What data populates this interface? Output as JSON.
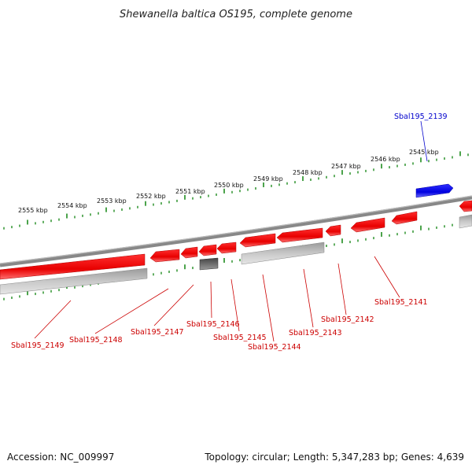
{
  "title": "Shewanella baltica OS195, complete genome",
  "footer": {
    "accession": "Accession: NC_009997",
    "topology": "Topology: circular; Length: 5,347,283 bp; Genes: 4,639"
  },
  "colors": {
    "forward_gene": "#ff1a1a",
    "reverse_gene": "#ff1a1a",
    "highlight_gene": "#1a1aff",
    "other_feature": "#c0c0c0",
    "backbone": "#8c8c8c",
    "tick": "#1e8c1e",
    "label_red": "#cc0000",
    "label_blue": "#0000cc"
  },
  "ticks_top": [
    "2555 kbp",
    "2554 kbp",
    "2553 kbp",
    "2552 kbp",
    "2551 kbp",
    "2550 kbp",
    "2549 kbp",
    "2548 kbp",
    "2547 kbp",
    "2546 kbp",
    "2545 kbp"
  ],
  "gene_labels": [
    {
      "id": "Sbal195_2139",
      "color": "blue"
    },
    {
      "id": "Sbal195_2141",
      "color": "red"
    },
    {
      "id": "Sbal195_2142",
      "color": "red"
    },
    {
      "id": "Sbal195_2143",
      "color": "red"
    },
    {
      "id": "Sbal195_2144",
      "color": "red"
    },
    {
      "id": "Sbal195_2145",
      "color": "red"
    },
    {
      "id": "Sbal195_2146",
      "color": "red"
    },
    {
      "id": "Sbal195_2147",
      "color": "red"
    },
    {
      "id": "Sbal195_2148",
      "color": "red"
    },
    {
      "id": "Sbal195_2149",
      "color": "red"
    }
  ]
}
